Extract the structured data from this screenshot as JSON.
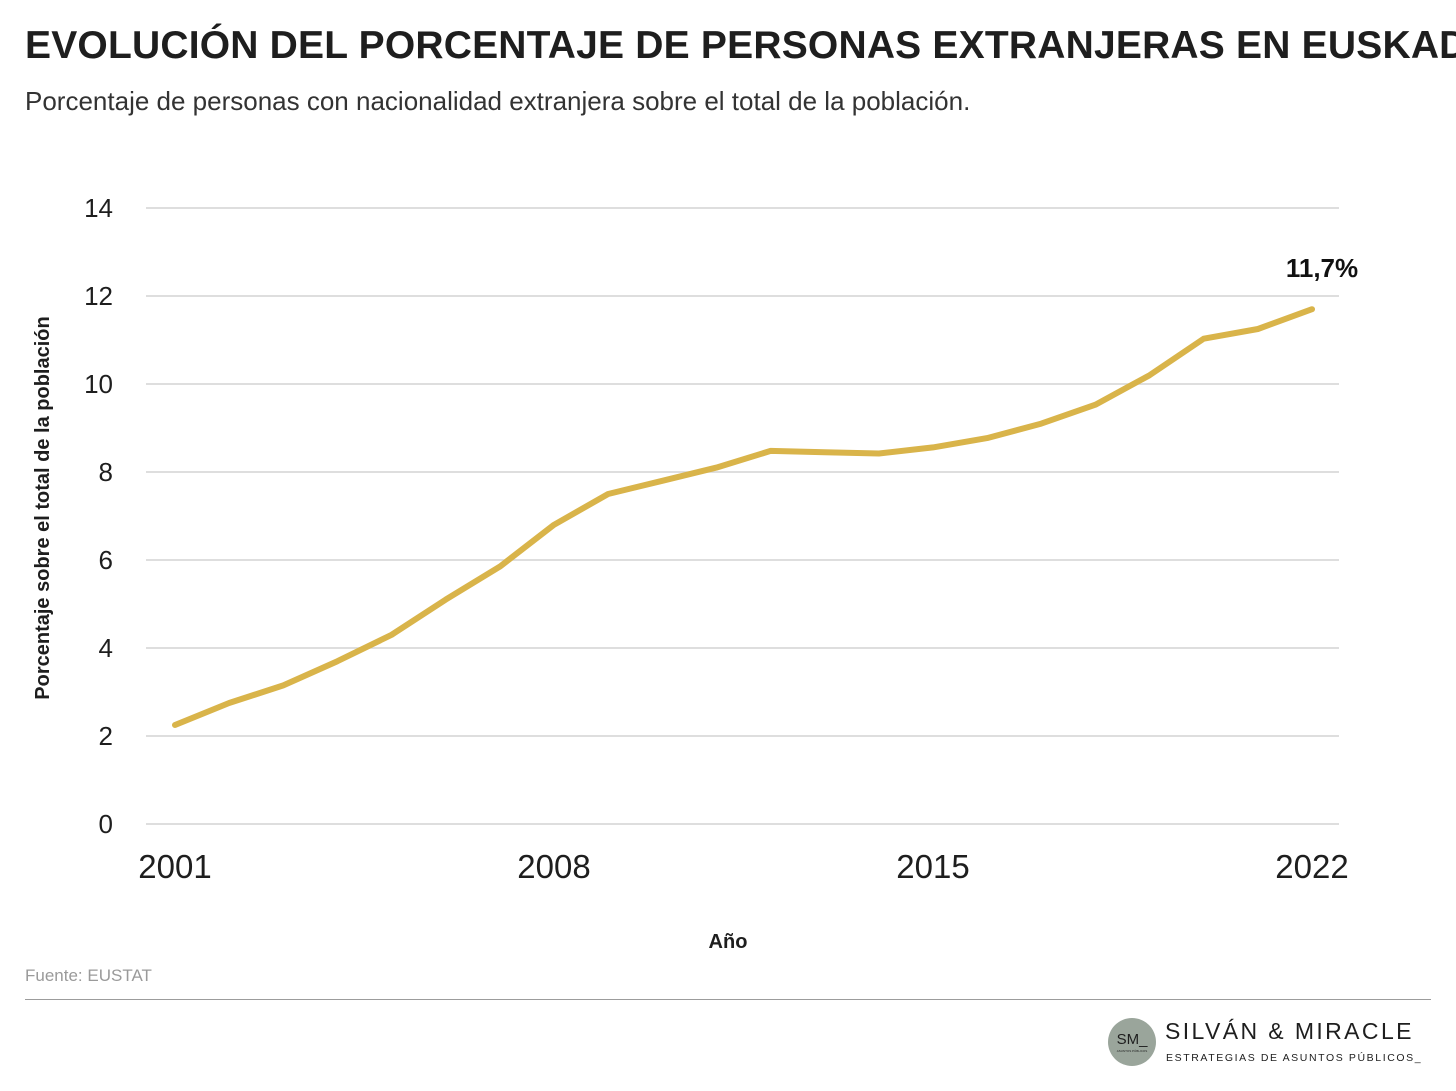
{
  "header": {
    "title": "EVOLUCIÓN DEL PORCENTAJE DE PERSONAS EXTRANJERAS EN EUSKADI",
    "subtitle": "Porcentaje de personas con nacionalidad extranjera sobre el total de la población."
  },
  "chart_data": {
    "type": "line",
    "ylabel": "Porcentaje sobre el total de la población",
    "xlabel": "Año",
    "ylim": [
      0,
      14
    ],
    "yticks": [
      0,
      2,
      4,
      6,
      8,
      10,
      12,
      14
    ],
    "xlim": [
      2001,
      2022
    ],
    "xticks": [
      "2001",
      "2008",
      "2015",
      "2022"
    ],
    "grid": true,
    "line_color": "#d9b44a",
    "series": [
      {
        "x": [
          2001,
          2002,
          2003,
          2004,
          2005,
          2006,
          2007,
          2008,
          2009,
          2010,
          2011,
          2012,
          2013,
          2014,
          2015,
          2016,
          2017,
          2018,
          2019,
          2020,
          2021,
          2022
        ],
        "values": [
          2.25,
          2.75,
          3.15,
          3.7,
          4.3,
          5.1,
          5.85,
          6.8,
          7.5,
          7.8,
          8.1,
          8.48,
          8.45,
          8.42,
          8.56,
          8.77,
          9.1,
          9.53,
          10.2,
          11.03,
          11.25,
          11.7
        ]
      }
    ],
    "annotations": [
      {
        "x": 2022,
        "y": 11.7,
        "text": "11,7%"
      }
    ]
  },
  "footer": {
    "source": "Fuente: EUSTAT",
    "brand": {
      "initials": "SM_",
      "circle_tag": "ASUNTOS PÚBLICOS",
      "name": "SILVÁN & MIRACLE",
      "tagline": "ESTRATEGIAS DE ASUNTOS PÚBLICOS_"
    }
  }
}
